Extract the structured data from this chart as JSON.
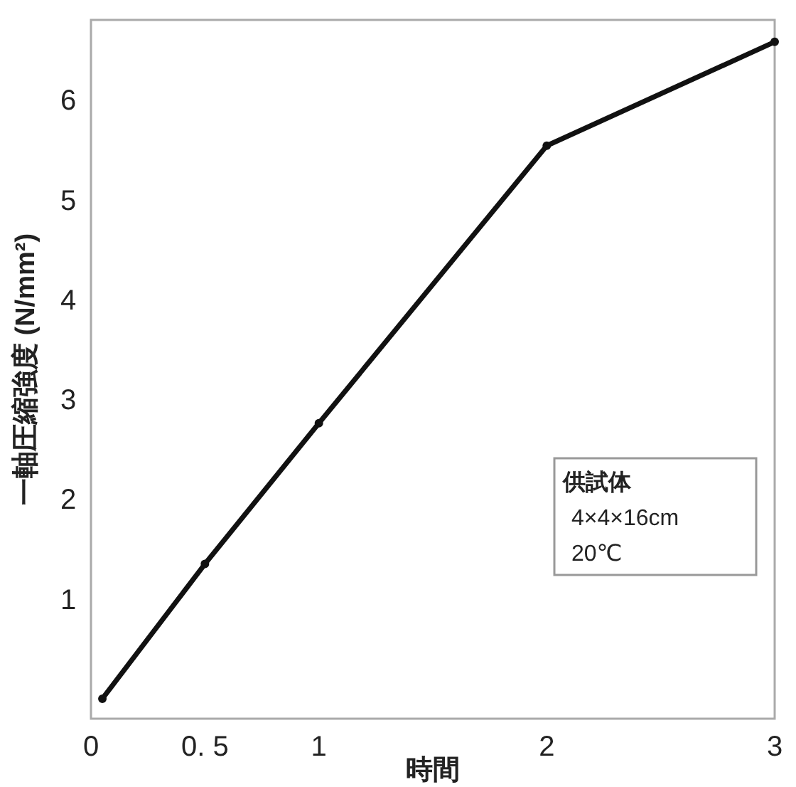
{
  "chart_data": {
    "type": "line",
    "xlabel": "時間",
    "ylabel": "一軸圧縮強度 (N/mm²)",
    "x": [
      0.05,
      0.5,
      1,
      2,
      3
    ],
    "series": [
      {
        "color": "#111111",
        "values": [
          0,
          1.35,
          2.76,
          5.54,
          6.58
        ]
      }
    ],
    "xlim": [
      0,
      3
    ],
    "xticks": [
      0,
      {
        "value": 0.5,
        "label": "0. 5"
      },
      1,
      2,
      3
    ],
    "ylim": [
      -0.2,
      6.8
    ],
    "yticks": [
      1,
      2,
      3,
      4,
      5,
      6
    ],
    "marker": "circle",
    "line_style": "solid",
    "grid": false,
    "annotations": [
      "供試体",
      "4×4×16cm",
      "20℃"
    ]
  }
}
